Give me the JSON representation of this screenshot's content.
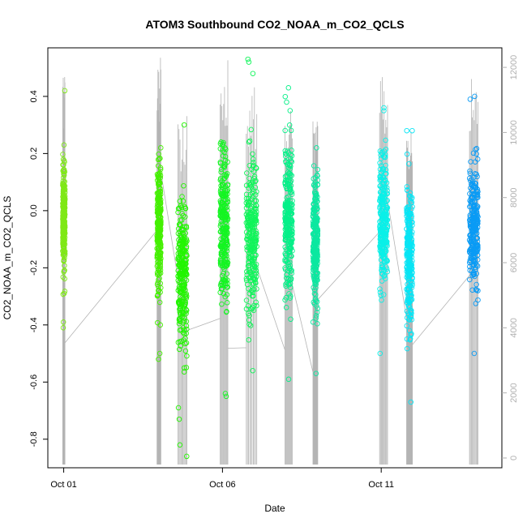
{
  "chart_data": {
    "type": "scatter",
    "title": "ATOM3 Southbound CO2_NOAA_m_CO2_QCLS",
    "xlabel": "Date",
    "ylabel": "CO2_NOAA_m_CO2_QCLS",
    "x_ticks": [
      {
        "label": "Oct 01",
        "day": 1
      },
      {
        "label": "Oct 06",
        "day": 6
      },
      {
        "label": "Oct 11",
        "day": 11
      }
    ],
    "xlim_days": [
      0.5,
      14.8
    ],
    "ylim": [
      -0.9,
      0.57
    ],
    "y_ticks": [
      -0.8,
      -0.6,
      -0.4,
      -0.2,
      0.0,
      0.2,
      0.4
    ],
    "y_tick_labels": [
      "-0.8",
      "-0.6",
      "-0.4",
      "-0.2",
      "0.0",
      "0.2",
      "0.4"
    ],
    "y2_ticks": [
      0,
      2000,
      4000,
      6000,
      8000,
      10000,
      12000
    ],
    "y2_tick_labels": [
      "0",
      "2000",
      "4000",
      "6000",
      "8000",
      "10000",
      "12000"
    ],
    "y2lim": [
      -300,
      12600
    ],
    "grid": false,
    "legend": "none",
    "colors": {
      "altitude_line": "#b4b4b4",
      "axis": "#000000",
      "right_axis": "#b0b0b0"
    },
    "flights": [
      {
        "day": 1.0,
        "x_start": 0.97,
        "x_end": 1.04,
        "color": "#7FE817",
        "ymin": -0.41,
        "ymax": 0.23,
        "center": -0.03,
        "alt_max": 11900,
        "outliers": [
          0.42,
          -0.39,
          -0.29
        ]
      },
      {
        "day": 4.0,
        "x_start": 3.94,
        "x_end": 4.06,
        "color": "#44F000",
        "ymin": -0.52,
        "ymax": 0.22,
        "center": -0.05,
        "alt_max": 12300,
        "outliers": [
          -0.4,
          -0.5
        ]
      },
      {
        "day": 4.75,
        "x_start": 4.6,
        "x_end": 4.88,
        "color": "#22F500",
        "ymin": -0.69,
        "ymax": 0.3,
        "center": -0.22,
        "alt_max": 10700,
        "outliers": [
          -0.86,
          -0.82,
          -0.73
        ]
      },
      {
        "day": 6.05,
        "x_start": 5.93,
        "x_end": 6.17,
        "color": "#14F522",
        "ymin": -0.64,
        "ymax": 0.24,
        "center": -0.04,
        "alt_max": 12300,
        "outliers": [
          -0.65
        ]
      },
      {
        "day": 6.9,
        "x_start": 6.75,
        "x_end": 7.08,
        "color": "#10F55A",
        "ymin": -0.56,
        "ymax": 0.53,
        "center": -0.08,
        "alt_max": 11400,
        "outliers": [
          0.52,
          0.48
        ]
      },
      {
        "day": 8.1,
        "x_start": 7.97,
        "x_end": 8.2,
        "color": "#05F088",
        "ymin": -0.59,
        "ymax": 0.43,
        "center": -0.04,
        "alt_max": 10800,
        "outliers": [
          0.38,
          0.35
        ]
      },
      {
        "day": 8.9,
        "x_start": 8.85,
        "x_end": 9.0,
        "color": "#0BE8A0",
        "ymin": -0.57,
        "ymax": 0.22,
        "center": -0.1,
        "alt_max": 10400,
        "outliers": []
      },
      {
        "day": 11.1,
        "x_start": 10.95,
        "x_end": 11.2,
        "color": "#0AF0E8",
        "ymin": -0.5,
        "ymax": 0.35,
        "center": -0.02,
        "alt_max": 11800,
        "outliers": [
          0.36
        ]
      },
      {
        "day": 11.9,
        "x_start": 11.8,
        "x_end": 11.98,
        "color": "#06E5F5",
        "ymin": -0.67,
        "ymax": 0.28,
        "center": -0.17,
        "alt_max": 10100,
        "outliers": [
          0.28
        ]
      },
      {
        "day": 13.9,
        "x_start": 13.78,
        "x_end": 14.05,
        "color": "#0A9BF5",
        "ymin": -0.5,
        "ymax": 0.4,
        "center": -0.05,
        "alt_max": 11800,
        "outliers": [
          0.39
        ]
      }
    ]
  }
}
